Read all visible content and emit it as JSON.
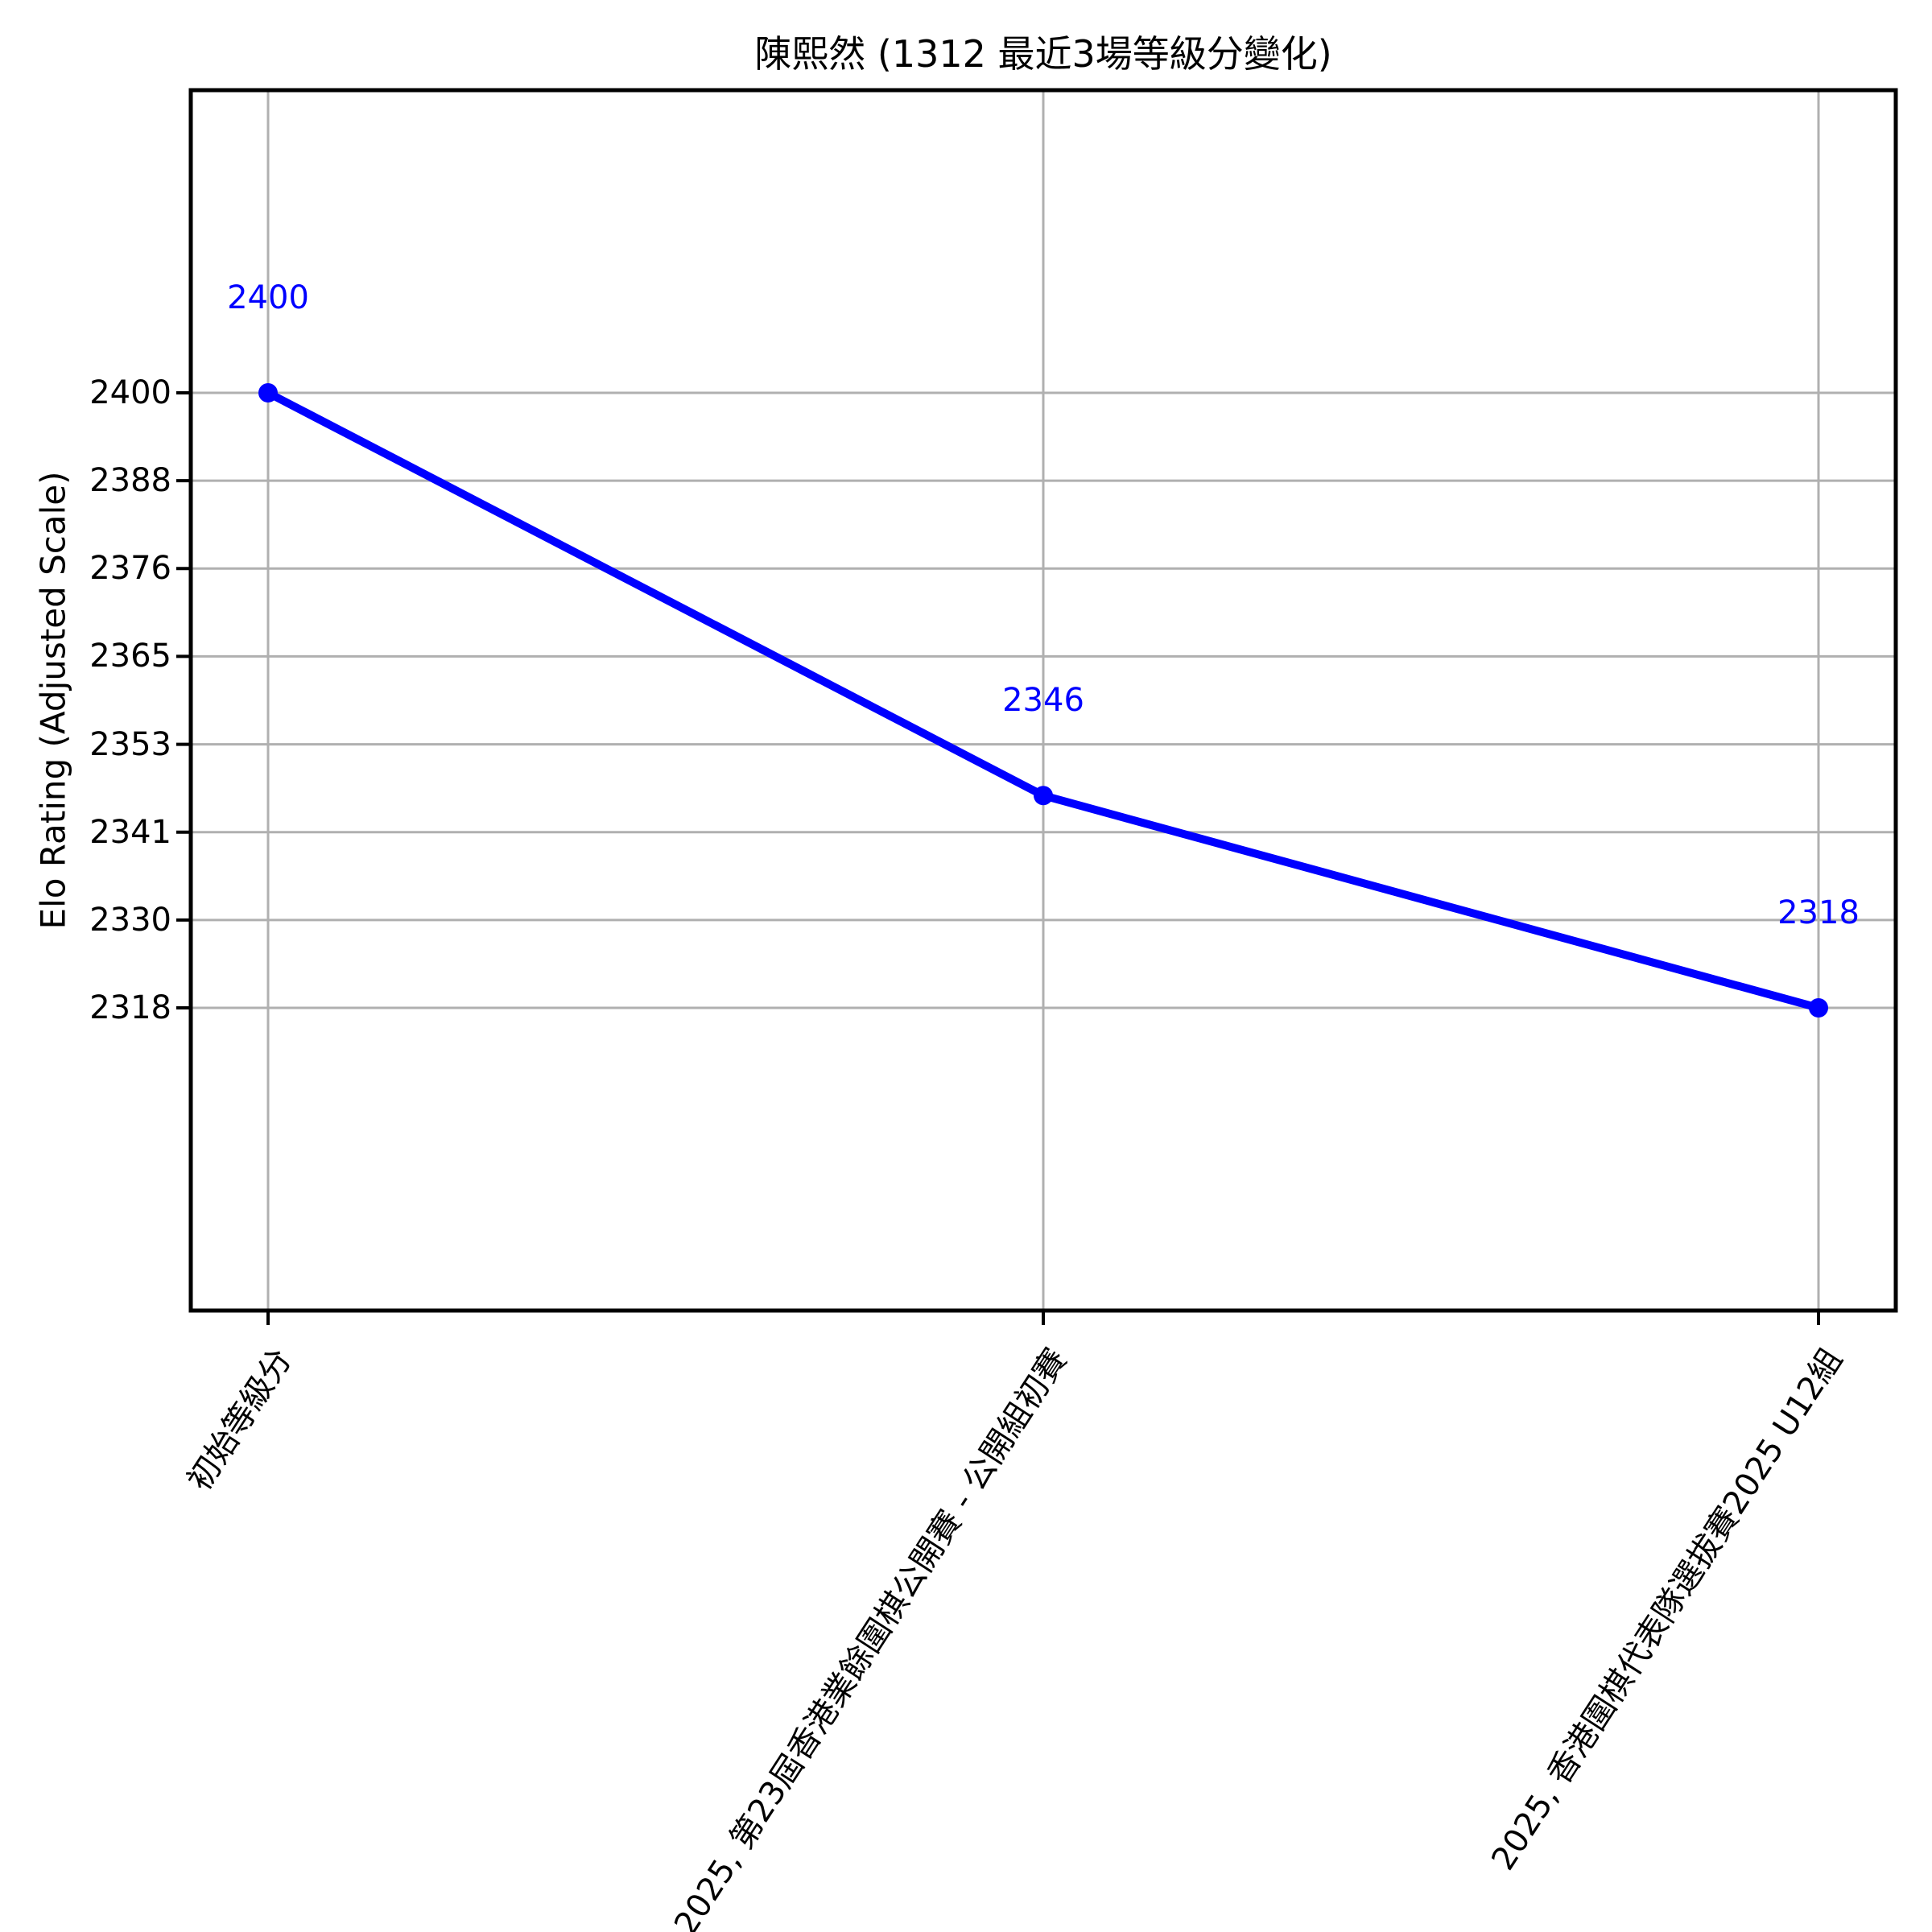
{
  "figure": {
    "title": "陳熙然 (1312 最近3場等級分變化)",
    "background": "#ffffff"
  },
  "chart_data": {
    "type": "line",
    "title": "陳熙然 (1312 最近3場等級分變化)",
    "xlabel": "",
    "ylabel": "Elo Rating (Adjusted Scale)",
    "categories": [
      "初始等級分",
      "2025, 第23屆香港業餘圍棋公開賽 - 公開組初賽",
      "2025, 香港圍棋代表隊選拔賽2025 U12組"
    ],
    "series": [
      {
        "name": "Elo Rating",
        "values": [
          2400,
          2346,
          2318
        ]
      }
    ],
    "point_labels": [
      "2400",
      "2346",
      "2318"
    ],
    "ytick_labels": [
      "2400",
      "2388",
      "2376",
      "2365",
      "2353",
      "2341",
      "2330",
      "2318"
    ],
    "ytick_values": [
      2400,
      2388,
      2376,
      2365,
      2353,
      2341,
      2330,
      2318
    ],
    "grid": true,
    "legend": "none",
    "line_color": "#0000ff",
    "point_label_color": "#0000ff",
    "grid_color": "#b0b0b0",
    "axis_color": "#000000",
    "tick_label_color": "#000000",
    "x_tick_rotation_deg": 57,
    "marker": "circle"
  }
}
